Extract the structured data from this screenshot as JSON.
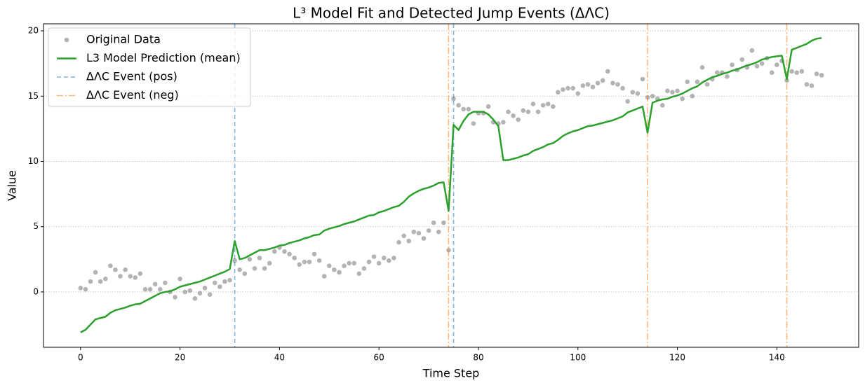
{
  "chart_data": {
    "type": "line",
    "title": "L³ Model Fit and Detected Jump Events (ΔΛC)",
    "x_label": "Time Step",
    "y_label": "Value",
    "x": [
      0,
      1,
      2,
      3,
      4,
      5,
      6,
      7,
      8,
      9,
      10,
      11,
      12,
      13,
      14,
      15,
      16,
      17,
      18,
      19,
      20,
      21,
      22,
      23,
      24,
      25,
      26,
      27,
      28,
      29,
      30,
      31,
      32,
      33,
      34,
      35,
      36,
      37,
      38,
      39,
      40,
      41,
      42,
      43,
      44,
      45,
      46,
      47,
      48,
      49,
      50,
      51,
      52,
      53,
      54,
      55,
      56,
      57,
      58,
      59,
      60,
      61,
      62,
      63,
      64,
      65,
      66,
      67,
      68,
      69,
      70,
      71,
      72,
      73,
      74,
      75,
      76,
      77,
      78,
      79,
      80,
      81,
      82,
      83,
      84,
      85,
      86,
      87,
      88,
      89,
      90,
      91,
      92,
      93,
      94,
      95,
      96,
      97,
      98,
      99,
      100,
      101,
      102,
      103,
      104,
      105,
      106,
      107,
      108,
      109,
      110,
      111,
      112,
      113,
      114,
      115,
      116,
      117,
      118,
      119,
      120,
      121,
      122,
      123,
      124,
      125,
      126,
      127,
      128,
      129,
      130,
      131,
      132,
      133,
      134,
      135,
      136,
      137,
      138,
      139,
      140,
      141,
      142,
      143,
      144,
      145,
      146,
      147,
      148,
      149
    ],
    "series": [
      {
        "name": "Original Data",
        "kind": "scatter",
        "color": "#808080",
        "values": [
          0.3,
          0.2,
          0.8,
          1.5,
          0.8,
          1.0,
          2.0,
          1.7,
          1.2,
          1.7,
          1.2,
          1.1,
          1.4,
          0.2,
          0.2,
          0.6,
          0.2,
          0.7,
          0.0,
          -0.4,
          1.0,
          0.0,
          0.1,
          -0.5,
          -0.1,
          0.3,
          -0.2,
          0.7,
          0.4,
          0.8,
          0.9,
          2.4,
          1.7,
          1.4,
          2.5,
          1.8,
          2.6,
          1.8,
          2.2,
          3.1,
          3.4,
          3.1,
          2.9,
          2.6,
          2.1,
          2.3,
          2.3,
          2.9,
          2.4,
          1.2,
          2.0,
          1.7,
          1.5,
          2.0,
          2.2,
          2.2,
          1.4,
          1.8,
          2.3,
          2.7,
          2.2,
          2.6,
          2.4,
          2.6,
          3.8,
          4.3,
          3.9,
          4.6,
          4.5,
          4.1,
          4.7,
          5.3,
          4.6,
          5.3,
          3.2,
          14.8,
          14.3,
          14.0,
          14.0,
          12.9,
          13.7,
          13.7,
          14.2,
          13.0,
          12.9,
          13.0,
          13.8,
          13.5,
          13.2,
          13.9,
          13.8,
          14.4,
          13.8,
          14.3,
          14.4,
          14.2,
          15.3,
          15.5,
          15.6,
          15.6,
          15.2,
          15.8,
          15.9,
          15.7,
          16.0,
          16.2,
          16.9,
          16.0,
          15.9,
          15.6,
          14.6,
          15.3,
          15.2,
          16.3,
          14.9,
          15.0,
          14.8,
          14.3,
          15.4,
          15.3,
          15.4,
          14.8,
          16.1,
          15.0,
          16.1,
          17.2,
          15.9,
          16.3,
          16.8,
          16.8,
          16.5,
          17.4,
          17.0,
          17.8,
          17.2,
          18.5,
          17.3,
          17.5,
          17.9,
          16.8,
          17.4,
          17.7,
          16.2,
          16.9,
          16.8,
          16.9,
          15.9,
          15.8,
          16.7,
          16.6
        ]
      },
      {
        "name": "L3 Model Prediction (mean)",
        "kind": "line",
        "color": "#2ca02c",
        "values": [
          -3.1,
          -2.9,
          -2.5,
          -2.1,
          -2.0,
          -1.9,
          -1.6,
          -1.4,
          -1.3,
          -1.2,
          -1.05,
          -0.95,
          -0.9,
          -0.7,
          -0.5,
          -0.3,
          -0.1,
          0.0,
          0.05,
          0.2,
          0.4,
          0.5,
          0.6,
          0.7,
          0.8,
          0.95,
          1.1,
          1.25,
          1.4,
          1.55,
          1.75,
          3.9,
          2.5,
          2.6,
          2.8,
          3.0,
          3.2,
          3.2,
          3.3,
          3.4,
          3.55,
          3.6,
          3.75,
          3.85,
          3.95,
          4.1,
          4.2,
          4.35,
          4.4,
          4.7,
          4.85,
          4.95,
          5.05,
          5.2,
          5.3,
          5.4,
          5.55,
          5.7,
          5.85,
          5.9,
          6.1,
          6.2,
          6.35,
          6.5,
          6.6,
          6.9,
          7.3,
          7.55,
          7.75,
          7.9,
          8.0,
          8.15,
          8.35,
          8.4,
          6.2,
          12.8,
          12.4,
          13.1,
          13.6,
          13.8,
          13.8,
          13.8,
          13.6,
          13.2,
          12.7,
          10.1,
          10.1,
          10.2,
          10.3,
          10.45,
          10.55,
          10.8,
          10.95,
          11.1,
          11.3,
          11.4,
          11.65,
          11.95,
          12.15,
          12.3,
          12.4,
          12.55,
          12.7,
          12.75,
          12.85,
          12.95,
          13.05,
          13.15,
          13.3,
          13.45,
          13.75,
          13.9,
          14.05,
          14.2,
          12.2,
          14.5,
          14.65,
          14.75,
          14.8,
          14.95,
          15.05,
          15.2,
          15.4,
          15.6,
          15.75,
          16.05,
          16.25,
          16.45,
          16.55,
          16.7,
          16.8,
          16.95,
          17.05,
          17.2,
          17.35,
          17.45,
          17.6,
          17.8,
          17.9,
          18.0,
          18.05,
          18.1,
          16.3,
          18.55,
          18.7,
          18.85,
          19.0,
          19.25,
          19.4,
          19.45
        ]
      }
    ],
    "events": [
      {
        "name": "ΔΛC Event (pos)",
        "color": "#1f77b4",
        "dash": "6 4",
        "x": [
          31,
          75
        ]
      },
      {
        "name": "ΔΛC Event (neg)",
        "color": "#ff7f0e",
        "dash": "9 3 2 3",
        "x": [
          74,
          114,
          142
        ]
      }
    ],
    "xlim": [
      -7.45,
      156.45
    ],
    "xticks": [
      0,
      20,
      40,
      60,
      80,
      100,
      120,
      140
    ],
    "ylim": [
      -4.24,
      20.54
    ],
    "yticks": [
      0,
      5,
      10,
      15,
      20
    ],
    "grid": true,
    "legend": "upper left"
  }
}
